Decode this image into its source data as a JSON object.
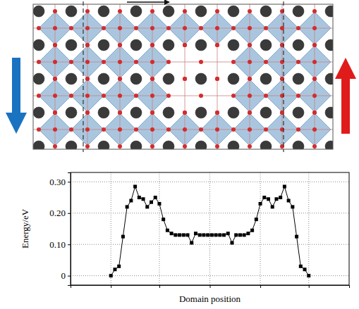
{
  "chart_data": {
    "type": "line",
    "x_label": "Domain position",
    "y_label": "Energy/eV",
    "x": [
      0,
      1,
      2,
      3,
      4,
      5,
      6,
      7,
      8,
      9,
      10,
      11,
      12,
      13,
      14,
      15,
      16,
      17,
      18,
      19,
      20,
      21,
      22,
      23,
      24,
      25,
      26,
      27,
      28,
      29,
      30,
      31,
      32,
      33,
      34,
      35,
      36,
      37,
      38,
      39,
      40,
      41,
      42,
      43,
      44,
      45,
      46,
      47,
      48,
      49
    ],
    "values": [
      0.0,
      0.02,
      0.03,
      0.125,
      0.22,
      0.24,
      0.285,
      0.25,
      0.245,
      0.22,
      0.235,
      0.25,
      0.23,
      0.18,
      0.145,
      0.135,
      0.13,
      0.13,
      0.13,
      0.13,
      0.105,
      0.135,
      0.13,
      0.13,
      0.13,
      0.13,
      0.13,
      0.13,
      0.13,
      0.135,
      0.105,
      0.13,
      0.13,
      0.13,
      0.135,
      0.145,
      0.18,
      0.23,
      0.25,
      0.245,
      0.22,
      0.245,
      0.25,
      0.285,
      0.24,
      0.22,
      0.125,
      0.03,
      0.02,
      0.0
    ],
    "color": "#000000",
    "marker": "square",
    "line_style": "solid",
    "xlim": [
      -10,
      59
    ],
    "ylim": [
      -0.03,
      0.33
    ],
    "xticks": [
      0,
      12,
      24.5,
      37,
      49
    ],
    "yticks": [
      {
        "value": 0,
        "label": "0"
      },
      {
        "value": 0.1,
        "label": "0.10"
      },
      {
        "value": 0.2,
        "label": "0.20"
      },
      {
        "value": 0.3,
        "label": "0.30"
      }
    ],
    "grid": true,
    "tick_labels": "y"
  }
}
